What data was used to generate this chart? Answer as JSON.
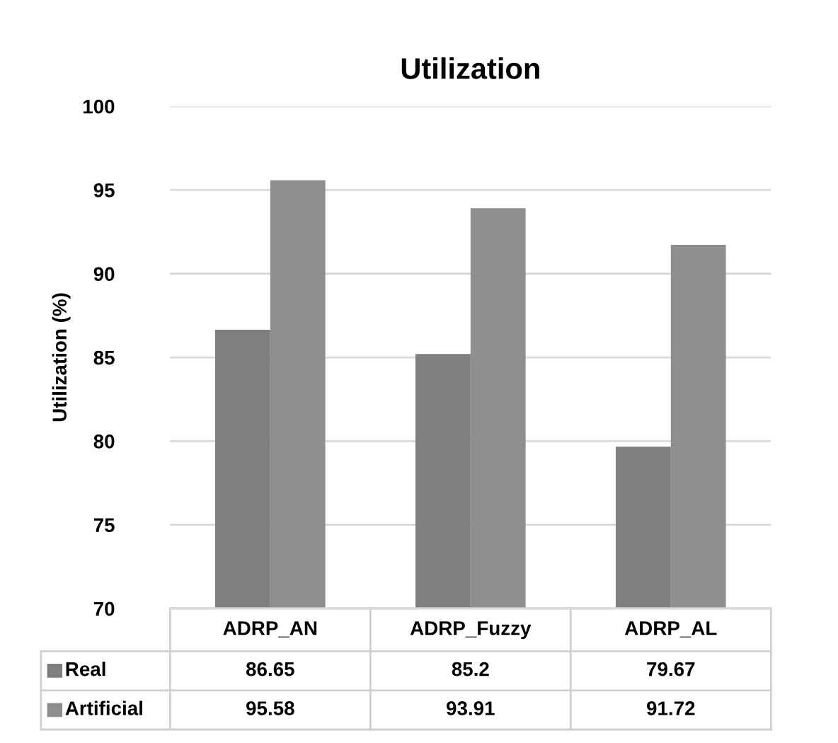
{
  "chart_data": {
    "type": "bar",
    "title": "Utilization",
    "ylabel": "Utilization (%)",
    "categories": [
      "ADRP_AN",
      "ADRP_Fuzzy",
      "ADRP_AL"
    ],
    "series": [
      {
        "name": "Real",
        "color": "#7f7f7f",
        "values": [
          86.65,
          85.2,
          79.67
        ]
      },
      {
        "name": "Artificial",
        "color": "#8f8f8f",
        "values": [
          95.58,
          93.91,
          91.72
        ]
      }
    ],
    "ylim": [
      70,
      100
    ],
    "yticks": [
      70,
      75,
      80,
      85,
      90,
      95,
      100
    ],
    "grid": "y",
    "data_labels": true,
    "legend": "bottom"
  }
}
